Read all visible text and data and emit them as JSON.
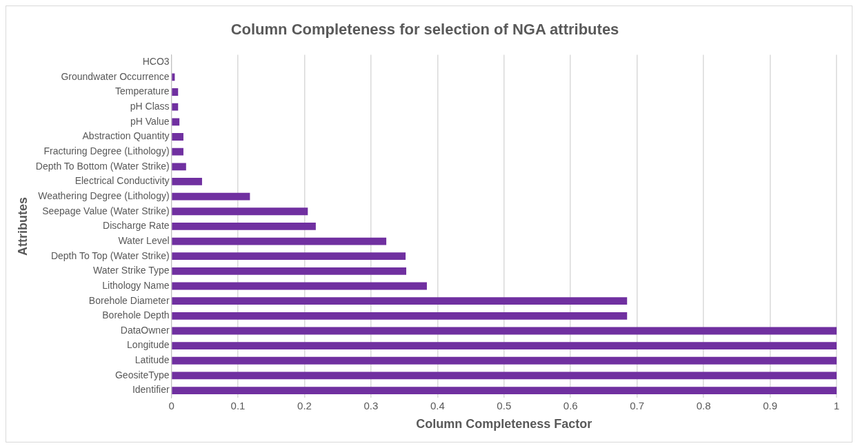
{
  "chart_data": {
    "type": "bar",
    "orientation": "horizontal",
    "title": "Column Completeness for selection of NGA attributes",
    "xlabel": "Column Completeness Factor",
    "ylabel": "Attributes",
    "categories": [
      "HCO3",
      "Groundwater Occurrence",
      "Temperature",
      "pH Class",
      "pH Value",
      "Abstraction Quantity",
      "Fracturing Degree (Lithology)",
      "Depth To Bottom (Water Strike)",
      "Electrical Conductivity",
      "Weathering Degree (Lithology)",
      "Seepage Value (Water Strike)",
      "Discharge Rate",
      "Water Level",
      "Depth To Top (Water Strike)",
      "Water Strike Type",
      "Lithology Name",
      "Borehole Diameter",
      "Borehole Depth",
      "DataOwner",
      "Longitude",
      "Latitude",
      "GeositeType",
      "Identifier"
    ],
    "values": [
      0,
      0.005,
      0.01,
      0.01,
      0.012,
      0.018,
      0.018,
      0.022,
      0.046,
      0.118,
      0.205,
      0.217,
      0.323,
      0.352,
      0.353,
      0.384,
      0.685,
      0.685,
      1,
      1,
      1,
      1,
      1
    ],
    "color": "#7030a0",
    "xlim": [
      0,
      1
    ],
    "xticks": [
      0,
      0.1,
      0.2,
      0.3,
      0.4,
      0.5,
      0.6,
      0.7,
      0.8,
      0.9,
      1
    ],
    "grid": "x",
    "legend": false
  }
}
